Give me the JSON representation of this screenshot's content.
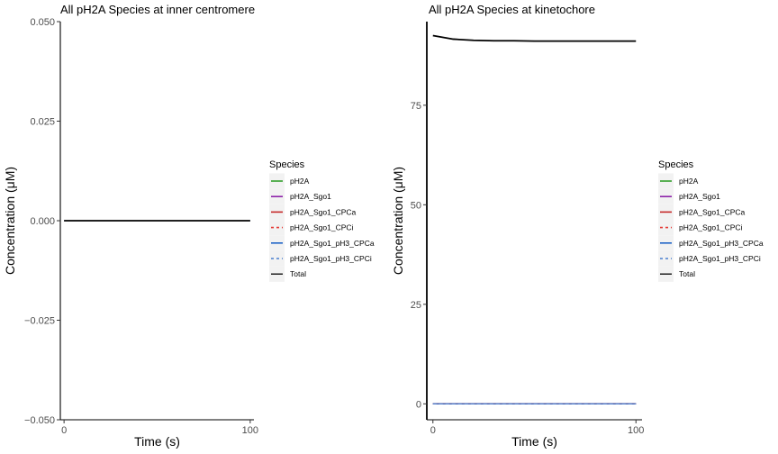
{
  "chart_data": [
    {
      "type": "line",
      "title": "All pH2A Species at inner centromere",
      "xlabel": "Time (s)",
      "ylabel": "Concentration (μM)",
      "xlim": [
        -2,
        102
      ],
      "ylim": [
        -0.05,
        0.05
      ],
      "x_ticks": [
        0,
        100
      ],
      "x_tick_labels": [
        "0",
        "100"
      ],
      "y_ticks": [
        -0.05,
        -0.025,
        0,
        0.025,
        0.05
      ],
      "y_tick_labels": [
        "−0.050",
        "−0.025",
        "0.000",
        "0.025",
        "0.050"
      ],
      "grid": false,
      "legend_position": "right",
      "legend_title": "Species",
      "x": [
        0,
        100
      ],
      "series": [
        {
          "name": "pH2A",
          "color": "#33a02c",
          "dash": "solid",
          "values": [
            0,
            0
          ]
        },
        {
          "name": "pH2A_Sgo1",
          "color": "#8e24aa",
          "dash": "solid",
          "values": [
            0,
            0
          ]
        },
        {
          "name": "pH2A_Sgo1_CPCa",
          "color": "#c62828",
          "dash": "solid",
          "values": [
            0,
            0
          ]
        },
        {
          "name": "pH2A_Sgo1_CPCi",
          "color": "#e53935",
          "dash": "dashed",
          "values": [
            0,
            0
          ]
        },
        {
          "name": "pH2A_Sgo1_pH3_CPCa",
          "color": "#1e63c6",
          "dash": "solid",
          "values": [
            0,
            0
          ]
        },
        {
          "name": "pH2A_Sgo1_pH3_CPCi",
          "color": "#4a7fd0",
          "dash": "dashed",
          "values": [
            0,
            0
          ]
        },
        {
          "name": "Total",
          "color": "#000000",
          "dash": "solid",
          "values": [
            0,
            0
          ]
        }
      ]
    },
    {
      "type": "line",
      "title": "All pH2A Species at kinetochore",
      "xlabel": "Time (s)",
      "ylabel": "Concentration (μM)",
      "xlim": [
        -3,
        103
      ],
      "ylim": [
        -4,
        96
      ],
      "x_ticks": [
        0,
        100
      ],
      "x_tick_labels": [
        "0",
        "100"
      ],
      "y_ticks": [
        0,
        25,
        50,
        75
      ],
      "y_tick_labels": [
        "0",
        "25",
        "50",
        "75"
      ],
      "grid": false,
      "legend_position": "right",
      "legend_title": "Species",
      "x": [
        0,
        10,
        20,
        30,
        40,
        50,
        60,
        70,
        80,
        90,
        100
      ],
      "series": [
        {
          "name": "pH2A",
          "color": "#33a02c",
          "dash": "solid",
          "values": [
            0,
            0,
            0,
            0,
            0,
            0,
            0,
            0,
            0,
            0,
            0
          ]
        },
        {
          "name": "pH2A_Sgo1",
          "color": "#8e24aa",
          "dash": "solid",
          "values": [
            0,
            0,
            0,
            0,
            0,
            0,
            0,
            0,
            0,
            0,
            0
          ]
        },
        {
          "name": "pH2A_Sgo1_CPCa",
          "color": "#c62828",
          "dash": "solid",
          "values": [
            0,
            0,
            0,
            0,
            0,
            0,
            0,
            0,
            0,
            0,
            0
          ]
        },
        {
          "name": "pH2A_Sgo1_CPCi",
          "color": "#e53935",
          "dash": "dashed",
          "values": [
            0,
            0,
            0,
            0,
            0,
            0,
            0,
            0,
            0,
            0,
            0
          ]
        },
        {
          "name": "pH2A_Sgo1_pH3_CPCa",
          "color": "#1e63c6",
          "dash": "solid",
          "values": [
            0,
            0,
            0,
            0,
            0,
            0,
            0,
            0,
            0,
            0,
            0
          ]
        },
        {
          "name": "pH2A_Sgo1_pH3_CPCi",
          "color": "#4a7fd0",
          "dash": "dashed",
          "values": [
            0,
            0,
            0,
            0,
            0,
            0,
            0,
            0,
            0,
            0,
            0
          ]
        },
        {
          "name": "Total",
          "color": "#000000",
          "dash": "solid",
          "values": [
            92.5,
            91.6,
            91.3,
            91.2,
            91.2,
            91.1,
            91.1,
            91.1,
            91.1,
            91.1,
            91.1
          ]
        }
      ]
    }
  ]
}
